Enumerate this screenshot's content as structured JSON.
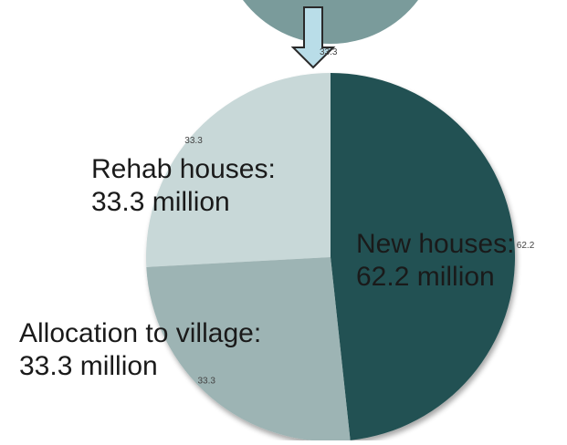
{
  "chart_data": {
    "type": "pie",
    "slices": [
      {
        "label_lines": [
          "New houses:",
          "62.2 million"
        ],
        "value": 62.2,
        "value_label": "62.2",
        "color": "#215152"
      },
      {
        "label_lines": [
          "Allocation to village:",
          "33.3 million"
        ],
        "value": 33.3,
        "value_label": "33.3",
        "color": "#9db4b4"
      },
      {
        "label_lines": [
          "Rehab houses:",
          "33.3 million"
        ],
        "value": 33.3,
        "value_label": "33.3",
        "color": "#c8d8d8"
      }
    ],
    "top_value_label": "33.3"
  },
  "colors": {
    "top_shape": "#7a9b9b",
    "arrow_fill": "#b9dde8",
    "arrow_stroke": "#2a2a2a"
  }
}
